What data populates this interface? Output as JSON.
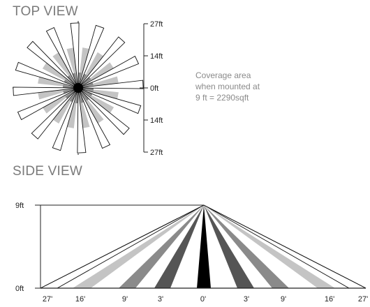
{
  "top_view": {
    "title": "TOP VIEW",
    "scale_labels": [
      "27ft",
      "14ft",
      "0ft",
      "14ft",
      "27ft"
    ],
    "coverage_note": [
      "Coverage area",
      "when mounted at",
      "9 ft = 2290sqft"
    ]
  },
  "side_view": {
    "title": "SIDE VIEW",
    "y_labels": [
      "9ft",
      "0ft"
    ],
    "x_labels": [
      "27'",
      "16'",
      "9'",
      "3'",
      "0'",
      "3'",
      "9'",
      "16'",
      "27'"
    ]
  },
  "colors": {
    "zone_27": "#ffffff",
    "zone_16": "#c4c4c4",
    "zone_9": "#8a8a8a",
    "zone_3": "#555555",
    "zone_0": "#000000",
    "outline": "#111111",
    "title": "#7a7a7a"
  }
}
